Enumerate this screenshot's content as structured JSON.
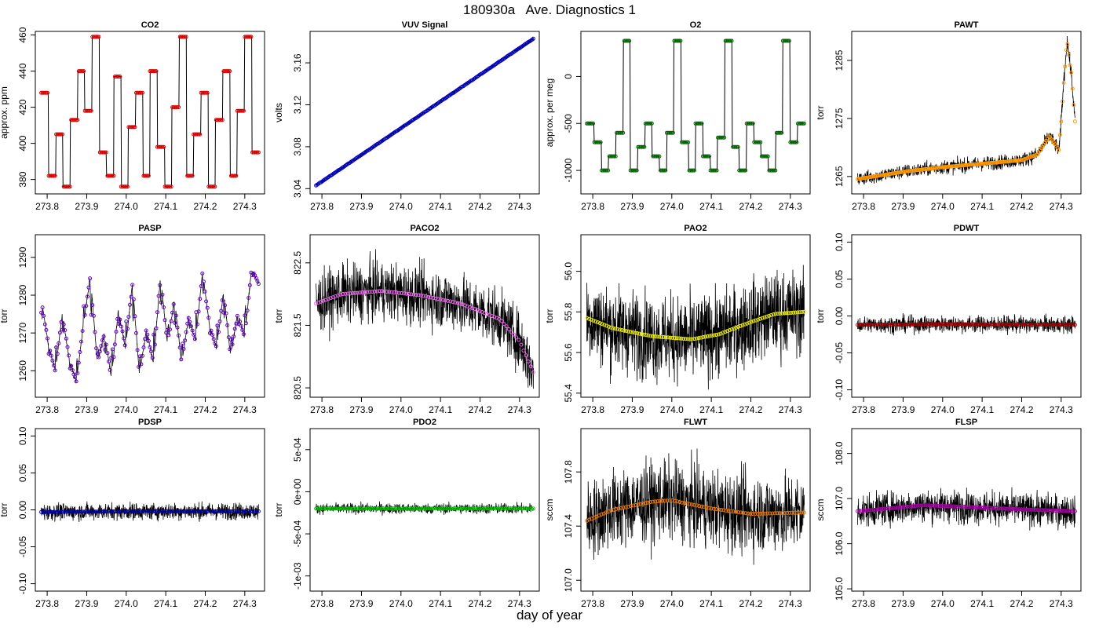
{
  "figure": {
    "title": "180930a   Ave. Diagnostics 1",
    "xlabel": "day of year"
  },
  "chart_data": [
    {
      "type": "line",
      "title": "CO2",
      "ylabel": "approx. ppm",
      "xlim": [
        273.77,
        274.35
      ],
      "ylim": [
        372,
        462
      ],
      "xticks": [
        273.8,
        273.9,
        274.0,
        274.1,
        274.2,
        274.3
      ],
      "xticklabels": [
        "273.8",
        "273.9",
        "274.0",
        "274.1",
        "274.2",
        "274.3"
      ],
      "yticks": [
        380,
        400,
        420,
        440,
        460
      ],
      "yticklabels": [
        "380",
        "400",
        "420",
        "440",
        "460"
      ],
      "marker_color": "#dd0000",
      "noise": 0,
      "markers": 175,
      "pattern": "step",
      "levels": [
        428,
        382,
        405,
        376,
        413,
        440,
        418,
        459,
        395,
        382,
        437,
        376,
        409,
        428,
        382,
        440,
        398,
        376,
        420,
        459,
        382,
        405,
        428,
        376,
        413,
        440,
        382,
        418,
        459,
        395
      ]
    },
    {
      "type": "line",
      "title": "VUV Signal",
      "ylabel": "volts",
      "xlim": [
        273.77,
        274.35
      ],
      "ylim": [
        3.035,
        3.19
      ],
      "xticks": [
        273.8,
        273.9,
        274.0,
        274.1,
        274.2,
        274.3
      ],
      "xticklabels": [
        "273.8",
        "273.9",
        "274.0",
        "274.1",
        "274.2",
        "274.3"
      ],
      "yticks": [
        3.04,
        3.08,
        3.12,
        3.16
      ],
      "yticklabels": [
        "3.04",
        "3.08",
        "3.12",
        "3.16"
      ],
      "marker_color": "#0000cc",
      "noise": 0.001,
      "markers": 175,
      "pattern": "trend",
      "start": 3.043,
      "end": 3.183
    },
    {
      "type": "line",
      "title": "O2",
      "ylabel": "approx. per meg",
      "xlim": [
        273.77,
        274.35
      ],
      "ylim": [
        -1250,
        480
      ],
      "xticks": [
        273.8,
        273.9,
        274.0,
        274.1,
        274.2,
        274.3
      ],
      "xticklabels": [
        "273.8",
        "273.9",
        "274.0",
        "274.1",
        "274.2",
        "274.3"
      ],
      "yticks": [
        -1000,
        -500,
        0
      ],
      "yticklabels": [
        "-1000",
        "-500",
        "0"
      ],
      "marker_color": "#006600",
      "noise": 0,
      "markers": 175,
      "pattern": "step",
      "levels": [
        -500,
        -700,
        -1000,
        -850,
        -600,
        380,
        -1000,
        -750,
        -500,
        -850,
        -1000,
        -600,
        380,
        -700,
        -1000,
        -500,
        -850,
        -1000,
        -650,
        380,
        -750,
        -1000,
        -500,
        -700,
        -850,
        -1000,
        -600,
        380,
        -700,
        -500
      ]
    },
    {
      "type": "line",
      "title": "PAWT",
      "ylabel": "torr",
      "xlim": [
        273.77,
        274.35
      ],
      "ylim": [
        1262,
        1290
      ],
      "xticks": [
        273.8,
        273.9,
        274.0,
        274.1,
        274.2,
        274.3
      ],
      "xticklabels": [
        "273.8",
        "273.9",
        "274.0",
        "274.1",
        "274.2",
        "274.3"
      ],
      "yticks": [
        1265,
        1275,
        1285
      ],
      "yticklabels": [
        "1265",
        "1275",
        "1285"
      ],
      "marker_color": "#ff9900",
      "noise": 1.2,
      "markers": 175,
      "pattern": "curve",
      "points": [
        [
          273.78,
          1264.5
        ],
        [
          273.9,
          1265.8
        ],
        [
          274.0,
          1266.6
        ],
        [
          274.1,
          1267.2
        ],
        [
          274.2,
          1267.8
        ],
        [
          274.24,
          1268.8
        ],
        [
          274.27,
          1272
        ],
        [
          274.295,
          1269.5
        ],
        [
          274.305,
          1280
        ],
        [
          274.315,
          1288.5
        ],
        [
          274.325,
          1283
        ],
        [
          274.335,
          1274.5
        ]
      ]
    },
    {
      "type": "line",
      "title": "PASP",
      "ylabel": "torr",
      "xlim": [
        273.77,
        274.35
      ],
      "ylim": [
        1253,
        1296
      ],
      "xticks": [
        273.8,
        273.9,
        274.0,
        274.1,
        274.2,
        274.3
      ],
      "xticklabels": [
        "273.8",
        "273.9",
        "274.0",
        "274.1",
        "274.2",
        "274.3"
      ],
      "yticks": [
        1260,
        1270,
        1280,
        1290
      ],
      "yticklabels": [
        "1260",
        "1270",
        "1280",
        "1290"
      ],
      "marker_color": "#6600cc",
      "noise": 0.5,
      "markers": 175,
      "pattern": "sawtooth",
      "levels": [
        1279,
        1267,
        1260,
        1275,
        1263,
        1257,
        1272,
        1285,
        1262,
        1270,
        1258,
        1276,
        1266,
        1283,
        1259,
        1271,
        1262,
        1285,
        1267,
        1279,
        1262,
        1274,
        1268,
        1286,
        1272,
        1266,
        1281,
        1264,
        1275,
        1269,
        1287,
        1283
      ]
    },
    {
      "type": "line",
      "title": "PACO2",
      "ylabel": "torr",
      "xlim": [
        273.77,
        274.35
      ],
      "ylim": [
        820.35,
        822.95
      ],
      "xticks": [
        273.8,
        273.9,
        274.0,
        274.1,
        274.2,
        274.3
      ],
      "xticklabels": [
        "273.8",
        "273.9",
        "274.0",
        "274.1",
        "274.2",
        "274.3"
      ],
      "yticks": [
        820.5,
        821.5,
        822.5
      ],
      "yticklabels": [
        "820.5",
        "821.5",
        "822.5"
      ],
      "marker_color": "#ee66ee",
      "noise": 0.45,
      "markers": 90,
      "pattern": "curve",
      "points": [
        [
          273.785,
          821.85
        ],
        [
          273.85,
          822.0
        ],
        [
          273.95,
          822.05
        ],
        [
          274.05,
          821.98
        ],
        [
          274.15,
          821.85
        ],
        [
          274.25,
          821.6
        ],
        [
          274.3,
          821.25
        ],
        [
          274.335,
          820.75
        ]
      ]
    },
    {
      "type": "line",
      "title": "PAO2",
      "ylabel": "torr",
      "xlim": [
        273.77,
        274.35
      ],
      "ylim": [
        55.38,
        56.18
      ],
      "xticks": [
        273.8,
        273.9,
        274.0,
        274.1,
        274.2,
        274.3
      ],
      "xticklabels": [
        "273.8",
        "273.9",
        "274.0",
        "274.1",
        "274.2",
        "274.3"
      ],
      "yticks": [
        55.4,
        55.6,
        55.8,
        56.0
      ],
      "yticklabels": [
        "55.4",
        "55.6",
        "55.8",
        "56.0"
      ],
      "marker_color": "#eeee00",
      "noise": 0.2,
      "markers": 100,
      "pattern": "curve",
      "points": [
        [
          273.785,
          55.77
        ],
        [
          273.85,
          55.72
        ],
        [
          273.95,
          55.68
        ],
        [
          274.05,
          55.665
        ],
        [
          274.12,
          55.69
        ],
        [
          274.2,
          55.75
        ],
        [
          274.26,
          55.79
        ],
        [
          274.335,
          55.8
        ]
      ]
    },
    {
      "type": "line",
      "title": "PDWT",
      "ylabel": "torr",
      "xlim": [
        273.77,
        274.35
      ],
      "ylim": [
        -0.11,
        0.11
      ],
      "xticks": [
        273.8,
        273.9,
        274.0,
        274.1,
        274.2,
        274.3
      ],
      "xticklabels": [
        "273.8",
        "273.9",
        "274.0",
        "274.1",
        "274.2",
        "274.3"
      ],
      "yticks": [
        -0.1,
        -0.05,
        0.0,
        0.05,
        0.1
      ],
      "yticklabels": [
        "-0.10",
        "-0.05",
        "0.00",
        "0.05",
        "0.10"
      ],
      "marker_color": "#aa0000",
      "noise": 0.011,
      "markers": 110,
      "pattern": "curve",
      "points": [
        [
          273.785,
          -0.012
        ],
        [
          274.0,
          -0.011
        ],
        [
          274.335,
          -0.012
        ]
      ]
    },
    {
      "type": "line",
      "title": "PDSP",
      "ylabel": "torr",
      "xlim": [
        273.77,
        274.35
      ],
      "ylim": [
        -0.11,
        0.11
      ],
      "xticks": [
        273.8,
        273.9,
        274.0,
        274.1,
        274.2,
        274.3
      ],
      "xticklabels": [
        "273.8",
        "273.9",
        "274.0",
        "274.1",
        "274.2",
        "274.3"
      ],
      "yticks": [
        -0.1,
        -0.05,
        0.0,
        0.05,
        0.1
      ],
      "yticklabels": [
        "-0.10",
        "-0.05",
        "0.00",
        "0.05",
        "0.10"
      ],
      "marker_color": "#0000aa",
      "noise": 0.011,
      "markers": 110,
      "pattern": "curve",
      "points": [
        [
          273.785,
          -0.003
        ],
        [
          274.0,
          -0.002
        ],
        [
          274.335,
          -0.002
        ]
      ]
    },
    {
      "type": "line",
      "title": "PDO2",
      "ylabel": "torr",
      "xlim": [
        273.77,
        274.35
      ],
      "ylim": [
        -0.00118,
        0.00075
      ],
      "xticks": [
        273.8,
        273.9,
        274.0,
        274.1,
        274.2,
        274.3
      ],
      "xticklabels": [
        "273.8",
        "273.9",
        "274.0",
        "274.1",
        "274.2",
        "274.3"
      ],
      "yticks": [
        -0.001,
        -0.0005,
        0.0,
        0.0005
      ],
      "yticklabels": [
        "-1e-03",
        "-5e-04",
        "0e+00",
        "5e-04"
      ],
      "marker_color": "#00cc00",
      "noise": 6e-05,
      "markers": 110,
      "pattern": "curve",
      "points": [
        [
          273.785,
          -0.0002
        ],
        [
          274.335,
          -0.0002
        ]
      ]
    },
    {
      "type": "line",
      "title": "FLWT",
      "ylabel": "sccm",
      "xlim": [
        273.77,
        274.35
      ],
      "ylim": [
        106.92,
        108.12
      ],
      "xticks": [
        273.8,
        273.9,
        274.0,
        274.1,
        274.2,
        274.3
      ],
      "xticklabels": [
        "273.8",
        "273.9",
        "274.0",
        "274.1",
        "274.2",
        "274.3"
      ],
      "yticks": [
        107.0,
        107.4,
        107.8
      ],
      "yticklabels": [
        "107.0",
        "107.4",
        "107.8"
      ],
      "marker_color": "#ee7700",
      "noise": 0.28,
      "markers": 90,
      "pattern": "curve",
      "points": [
        [
          273.785,
          107.44
        ],
        [
          273.85,
          107.52
        ],
        [
          273.95,
          107.58
        ],
        [
          274.0,
          107.59
        ],
        [
          274.1,
          107.53
        ],
        [
          274.2,
          107.49
        ],
        [
          274.335,
          107.5
        ]
      ]
    },
    {
      "type": "line",
      "title": "FLSP",
      "ylabel": "sccm",
      "xlim": [
        273.77,
        274.35
      ],
      "ylim": [
        104.95,
        108.55
      ],
      "xticks": [
        273.8,
        273.9,
        274.0,
        274.1,
        274.2,
        274.3
      ],
      "xticklabels": [
        "273.8",
        "273.9",
        "274.0",
        "274.1",
        "274.2",
        "274.3"
      ],
      "yticks": [
        105.0,
        106.0,
        107.0,
        108.0
      ],
      "yticklabels": [
        "105.0",
        "106.0",
        "107.0",
        "108.0"
      ],
      "marker_color": "#aa00aa",
      "noise": 0.35,
      "markers": 110,
      "pattern": "curve",
      "points": [
        [
          273.785,
          106.72
        ],
        [
          273.95,
          106.85
        ],
        [
          274.05,
          106.82
        ],
        [
          274.2,
          106.76
        ],
        [
          274.335,
          106.72
        ]
      ]
    }
  ]
}
